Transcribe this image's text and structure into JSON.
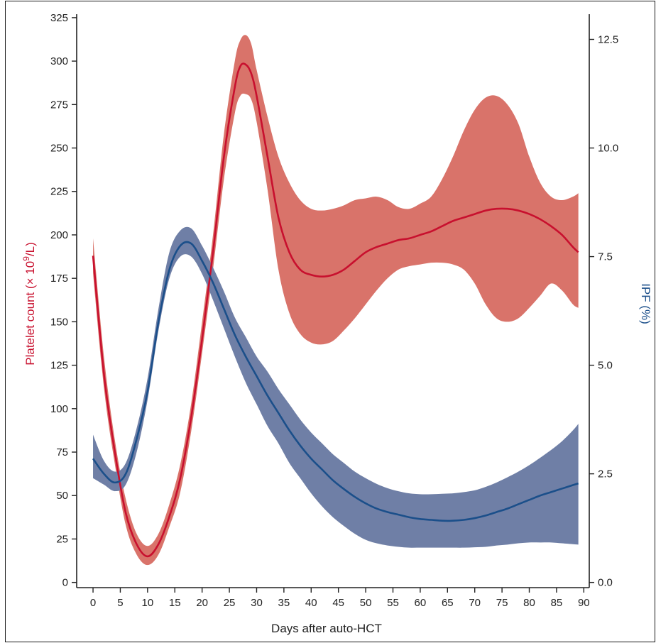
{
  "chart_data": {
    "type": "line",
    "xlabel": "Days after auto-HCT",
    "ylabel_left": "Platelet count (× 10",
    "ylabel_left_sup": "9",
    "ylabel_left_suffix": "/L)",
    "ylabel_right": "IPF (%)",
    "xlim": [
      -3,
      91
    ],
    "ylim_left": [
      -3,
      327
    ],
    "ylim_right": [
      -0.12,
      13.08
    ],
    "x_ticks": [
      0,
      5,
      10,
      15,
      20,
      25,
      30,
      35,
      40,
      45,
      50,
      55,
      60,
      65,
      70,
      75,
      80,
      85,
      90
    ],
    "y_left_ticks": [
      0,
      25,
      50,
      75,
      100,
      125,
      150,
      175,
      200,
      225,
      250,
      275,
      300,
      325
    ],
    "y_right_ticks": [
      "0.0",
      "2.5",
      "5.0",
      "7.5",
      "10.0",
      "12.5"
    ],
    "y_right_tick_values": [
      0,
      2.5,
      5,
      7.5,
      10,
      12.5
    ],
    "colors": {
      "platelet_line": "#c8102e",
      "platelet_band": "#d9736a",
      "ipf_line": "#1b4f8a",
      "ipf_band": "#6f7fa6",
      "ylabel_left_color": "#c8102e",
      "ylabel_right_color": "#1b4f8a"
    },
    "series": [
      {
        "axis": "left",
        "x": [
          0,
          2,
          4,
          6,
          8,
          10,
          12,
          14,
          16,
          18,
          20,
          22,
          24,
          26,
          27,
          28,
          29,
          30,
          32,
          34,
          36,
          38,
          40,
          42,
          44,
          46,
          48,
          50,
          52,
          54,
          56,
          58,
          60,
          62,
          64,
          66,
          68,
          70,
          72,
          74,
          76,
          78,
          80,
          82,
          84,
          86,
          88,
          89
        ],
        "y": [
          188,
          120,
          75,
          40,
          22,
          15,
          22,
          38,
          60,
          95,
          140,
          190,
          245,
          285,
          297,
          298,
          293,
          280,
          245,
          210,
          190,
          180,
          177,
          176,
          177,
          180,
          185,
          190,
          193,
          195,
          197,
          198,
          200,
          202,
          205,
          208,
          210,
          212,
          214,
          215,
          215,
          214,
          212,
          209,
          205,
          200,
          193,
          190
        ],
        "lower": [
          178,
          112,
          68,
          33,
          16,
          10,
          16,
          32,
          52,
          87,
          132,
          180,
          232,
          270,
          280,
          281,
          278,
          265,
          226,
          180,
          155,
          143,
          138,
          137,
          139,
          145,
          152,
          160,
          168,
          175,
          180,
          182,
          183,
          184,
          184,
          183,
          180,
          172,
          160,
          152,
          150,
          152,
          158,
          165,
          172,
          168,
          160,
          158
        ],
        "upper": [
          198,
          130,
          82,
          48,
          28,
          21,
          28,
          45,
          68,
          103,
          150,
          200,
          258,
          300,
          312,
          315,
          310,
          295,
          268,
          245,
          230,
          220,
          215,
          214,
          215,
          217,
          220,
          221,
          222,
          220,
          216,
          215,
          218,
          222,
          232,
          245,
          260,
          272,
          279,
          280,
          275,
          264,
          245,
          230,
          222,
          220,
          222,
          224
        ]
      },
      {
        "axis": "right",
        "x": [
          0,
          2,
          4,
          6,
          8,
          10,
          12,
          14,
          16,
          18,
          20,
          22,
          24,
          26,
          28,
          30,
          32,
          34,
          36,
          38,
          40,
          42,
          44,
          46,
          48,
          50,
          52,
          54,
          56,
          58,
          60,
          62,
          64,
          66,
          68,
          70,
          72,
          74,
          76,
          78,
          80,
          82,
          84,
          86,
          88,
          89
        ],
        "y": [
          2.85,
          2.5,
          2.3,
          2.5,
          3.3,
          4.4,
          6.0,
          7.2,
          7.75,
          7.8,
          7.4,
          6.9,
          6.3,
          5.7,
          5.2,
          4.75,
          4.3,
          3.9,
          3.5,
          3.15,
          2.85,
          2.6,
          2.35,
          2.15,
          1.97,
          1.82,
          1.7,
          1.62,
          1.56,
          1.5,
          1.46,
          1.44,
          1.42,
          1.42,
          1.44,
          1.48,
          1.54,
          1.62,
          1.7,
          1.8,
          1.9,
          2.0,
          2.08,
          2.16,
          2.24,
          2.28
        ],
        "lower": [
          2.4,
          2.25,
          2.1,
          2.25,
          3.0,
          4.2,
          5.8,
          7.0,
          7.5,
          7.5,
          7.1,
          6.5,
          5.85,
          5.2,
          4.6,
          4.1,
          3.6,
          3.2,
          2.75,
          2.4,
          2.05,
          1.75,
          1.5,
          1.3,
          1.12,
          0.98,
          0.9,
          0.85,
          0.82,
          0.8,
          0.8,
          0.8,
          0.8,
          0.8,
          0.8,
          0.81,
          0.82,
          0.85,
          0.87,
          0.9,
          0.92,
          0.92,
          0.92,
          0.9,
          0.88,
          0.87
        ],
        "upper": [
          3.4,
          2.8,
          2.55,
          2.75,
          3.55,
          4.7,
          6.3,
          7.6,
          8.1,
          8.15,
          7.75,
          7.25,
          6.7,
          6.1,
          5.65,
          5.2,
          4.85,
          4.45,
          4.1,
          3.75,
          3.45,
          3.2,
          2.95,
          2.75,
          2.55,
          2.4,
          2.27,
          2.17,
          2.1,
          2.05,
          2.03,
          2.03,
          2.04,
          2.05,
          2.08,
          2.12,
          2.2,
          2.3,
          2.42,
          2.55,
          2.7,
          2.87,
          3.05,
          3.25,
          3.5,
          3.65
        ]
      }
    ]
  }
}
